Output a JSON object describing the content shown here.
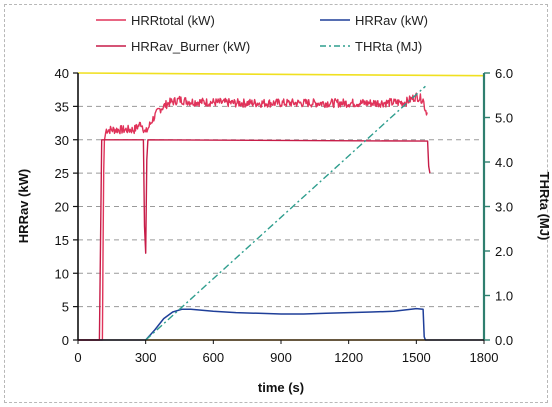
{
  "chart_data": {
    "type": "line",
    "xlabel": "time (s)",
    "ylabel": "HRRav (kW)",
    "ylabel_right": "THRta (MJ)",
    "xlim": [
      0,
      1800
    ],
    "ylim": [
      0,
      40
    ],
    "ylim_right": [
      0,
      6
    ],
    "x_ticks": [
      0,
      300,
      600,
      900,
      1200,
      1500,
      1800
    ],
    "y_ticks": [
      0,
      5,
      10,
      15,
      20,
      25,
      30,
      35,
      40
    ],
    "y_ticks_right": [
      "0.0",
      "1.0",
      "2.0",
      "3.0",
      "4.0",
      "5.0",
      "6.0"
    ],
    "grid": true,
    "legend_position": "top",
    "series": [
      {
        "name": "HRRtotal (kW)",
        "color": "#e0335a",
        "axis": "left",
        "style": "noisy",
        "x": [
          0,
          108,
          115,
          125,
          250,
          280,
          300,
          330,
          360,
          400,
          450,
          500,
          700,
          900,
          1100,
          1300,
          1450,
          1500,
          1530,
          1540,
          1550
        ],
        "y": [
          0,
          0,
          29.5,
          31.5,
          31.5,
          32.5,
          31.0,
          33.0,
          34.5,
          35.5,
          36.0,
          35.7,
          35.5,
          35.5,
          35.5,
          35.5,
          35.6,
          36.5,
          36.0,
          34.5,
          34.0
        ]
      },
      {
        "name": "HRRav (kW)",
        "color": "#1f3f99",
        "axis": "left",
        "style": "smooth",
        "x": [
          0,
          300,
          340,
          380,
          420,
          460,
          500,
          600,
          700,
          800,
          900,
          1000,
          1100,
          1200,
          1300,
          1400,
          1500,
          1530,
          1535,
          1540,
          1800
        ],
        "y": [
          0,
          0,
          1.5,
          3.2,
          4.2,
          4.6,
          4.6,
          4.3,
          4.1,
          4.0,
          3.9,
          3.9,
          4.0,
          4.1,
          4.2,
          4.3,
          4.7,
          4.6,
          0.5,
          0,
          0
        ]
      },
      {
        "name": "HRRav_Burner (kW)",
        "color": "#c71c48",
        "axis": "left",
        "style": "plain",
        "x": [
          0,
          95,
          105,
          290,
          295,
          300,
          305,
          310,
          1550,
          1555,
          1560
        ],
        "y": [
          0,
          0,
          30,
          30,
          17,
          13,
          27,
          30,
          29.8,
          26,
          25
        ]
      },
      {
        "name": "THRta (MJ)",
        "color": "#2f9e8e",
        "axis": "right",
        "style": "dashdot",
        "x": [
          300,
          1540
        ],
        "y": [
          0,
          5.7
        ]
      }
    ],
    "extra_lines": [
      {
        "color": "#f0e020",
        "axis": "left",
        "x": [
          0,
          1800
        ],
        "y": [
          40,
          39.6
        ]
      },
      {
        "color": "#f0a020",
        "axis": "left",
        "x": [
          0,
          1800
        ],
        "y": [
          0,
          0
        ]
      }
    ]
  }
}
